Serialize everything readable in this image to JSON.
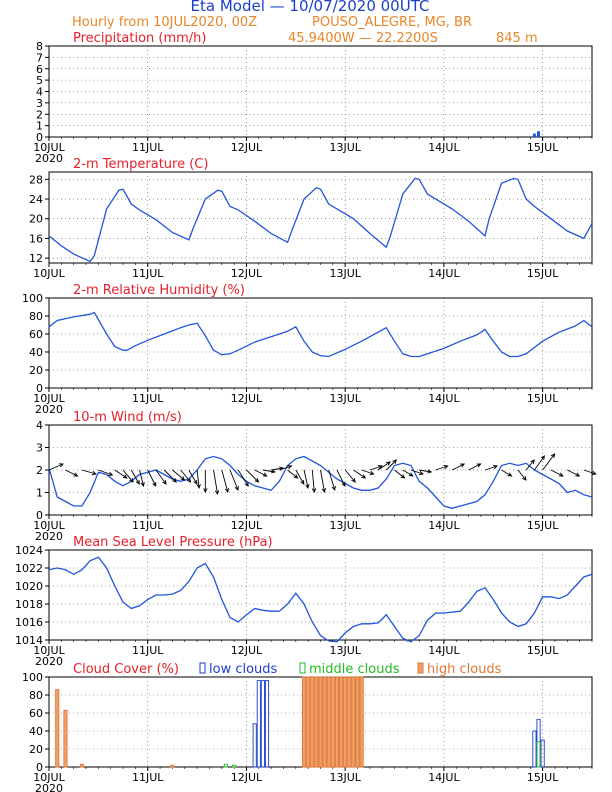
{
  "header": {
    "title": "Eta Model — 10/07/2020 00UTC",
    "subtitle_left": "Hourly from 10JUL2020, 00Z",
    "station": "POUSO_ALEGRE, MG, BR",
    "coords": "45.9400W — 22.2200S",
    "elevation": "845  m"
  },
  "colors": {
    "title": "#1a3fcc",
    "subtitle": "#e8862a",
    "panel_title": "#e8202a",
    "line": "#2255dd",
    "low": "#1a3fcc",
    "middle": "#22bb22",
    "high": "#f0a070",
    "high_edge": "#e07830"
  },
  "x_axis": {
    "ticks": [
      {
        "label": "10JUL",
        "sub": "2020",
        "hour": 0
      },
      {
        "label": "11JUL",
        "hour": 24
      },
      {
        "label": "12JUL",
        "hour": 48
      },
      {
        "label": "13JUL",
        "hour": 72
      },
      {
        "label": "14JUL",
        "hour": 96
      },
      {
        "label": "15JUL",
        "hour": 120
      }
    ],
    "max_hour": 132
  },
  "chart_data": [
    {
      "id": "precip",
      "type": "bar",
      "title": "Precipitation (mm/h)",
      "ylim": [
        0,
        8
      ],
      "yticks": [
        0,
        1,
        2,
        3,
        4,
        5,
        6,
        7,
        8
      ],
      "x": [
        118,
        119
      ],
      "values": [
        0.3,
        0.5
      ]
    },
    {
      "id": "temp",
      "type": "line",
      "title": "2-m Temperature (C)",
      "ylim": [
        11,
        29.5
      ],
      "yticks": [
        12,
        16,
        20,
        24,
        28
      ],
      "x": [
        0,
        3,
        6,
        10,
        11,
        14,
        17,
        18,
        20,
        22,
        26,
        30,
        34,
        35,
        38,
        41,
        42,
        44,
        46,
        50,
        54,
        58,
        59,
        62,
        65,
        66,
        68,
        70,
        74,
        78,
        82,
        83,
        86,
        89,
        90,
        92,
        94,
        98,
        102,
        106,
        107,
        110,
        113,
        114,
        116,
        118,
        122,
        126,
        130,
        132
      ],
      "values": [
        16.5,
        14.5,
        12.8,
        11.3,
        12.5,
        22,
        25.8,
        26,
        23,
        21.8,
        19.8,
        17.2,
        15.7,
        18,
        24,
        25.8,
        25.6,
        22.5,
        21.8,
        19.5,
        17,
        15.2,
        17.5,
        24,
        26.3,
        26,
        23,
        22,
        20,
        17,
        14.2,
        16.5,
        25,
        28.2,
        28,
        25,
        24,
        22,
        19.5,
        16.5,
        20,
        27.2,
        28.2,
        28,
        24,
        22.5,
        20,
        17.5,
        16,
        19
      ]
    },
    {
      "id": "rh",
      "type": "line",
      "title": "2-m Relative Humidity (%)",
      "ylim": [
        0,
        100
      ],
      "yticks": [
        0,
        20,
        40,
        60,
        80,
        100
      ],
      "x": [
        0,
        2,
        6,
        10,
        11,
        14,
        16,
        18,
        19,
        21,
        24,
        28,
        32,
        34,
        36,
        38,
        40,
        42,
        44,
        46,
        50,
        54,
        58,
        60,
        62,
        64,
        66,
        68,
        72,
        76,
        80,
        82,
        84,
        86,
        88,
        90,
        92,
        96,
        100,
        104,
        106,
        108,
        110,
        112,
        114,
        116,
        120,
        124,
        128,
        130,
        132
      ],
      "values": [
        68,
        75,
        79,
        82,
        84,
        60,
        46,
        42,
        42,
        47,
        53,
        60,
        67,
        70,
        72,
        58,
        42,
        37,
        38,
        42,
        51,
        57,
        63,
        68,
        52,
        40,
        36,
        35,
        43,
        52,
        62,
        67,
        52,
        38,
        35,
        35,
        38,
        44,
        52,
        59,
        65,
        52,
        40,
        35,
        35,
        38,
        52,
        62,
        69,
        75,
        68
      ]
    },
    {
      "id": "wind",
      "type": "line",
      "title": "10-m Wind (m/s)",
      "ylim": [
        0,
        4
      ],
      "yticks": [
        0,
        1,
        2,
        3,
        4
      ],
      "x": [
        0,
        2,
        4,
        6,
        8,
        10,
        12,
        14,
        16,
        18,
        20,
        22,
        24,
        26,
        28,
        30,
        32,
        34,
        36,
        38,
        40,
        42,
        44,
        46,
        48,
        50,
        52,
        54,
        56,
        58,
        60,
        62,
        64,
        66,
        68,
        70,
        72,
        74,
        76,
        78,
        80,
        82,
        84,
        86,
        88,
        90,
        92,
        94,
        96,
        98,
        100,
        102,
        104,
        106,
        108,
        110,
        112,
        114,
        116,
        118,
        120,
        122,
        124,
        126,
        128,
        130,
        132
      ],
      "values": [
        2.1,
        0.8,
        0.6,
        0.4,
        0.4,
        1.0,
        1.9,
        1.8,
        1.5,
        1.3,
        1.5,
        1.8,
        1.9,
        2.0,
        1.8,
        1.6,
        1.5,
        1.6,
        2.0,
        2.5,
        2.6,
        2.5,
        2.2,
        1.8,
        1.5,
        1.3,
        1.2,
        1.1,
        1.5,
        2.2,
        2.5,
        2.6,
        2.4,
        2.2,
        1.9,
        1.6,
        1.4,
        1.2,
        1.1,
        1.1,
        1.2,
        1.6,
        2.2,
        2.3,
        2.2,
        1.5,
        1.2,
        0.8,
        0.4,
        0.3,
        0.4,
        0.5,
        0.6,
        0.9,
        1.5,
        2.2,
        2.3,
        2.2,
        2.3,
        2.0,
        1.8,
        1.6,
        1.4,
        1.0,
        1.1,
        0.9,
        0.8
      ]
    },
    {
      "id": "mslp",
      "type": "line",
      "title": "Mean Sea Level Pressure (hPa)",
      "ylim": [
        1014,
        1024
      ],
      "yticks": [
        1014,
        1016,
        1018,
        1020,
        1022,
        1024
      ],
      "x": [
        0,
        2,
        4,
        6,
        8,
        10,
        12,
        14,
        16,
        18,
        20,
        22,
        24,
        26,
        28,
        30,
        32,
        34,
        36,
        38,
        40,
        42,
        44,
        46,
        48,
        50,
        52,
        54,
        56,
        58,
        60,
        62,
        64,
        66,
        68,
        70,
        72,
        74,
        76,
        78,
        80,
        82,
        84,
        86,
        88,
        90,
        92,
        94,
        96,
        98,
        100,
        102,
        104,
        106,
        108,
        110,
        112,
        114,
        116,
        118,
        120,
        122,
        124,
        126,
        128,
        130,
        132
      ],
      "values": [
        1021.8,
        1022.0,
        1021.8,
        1021.3,
        1021.8,
        1022.8,
        1023.2,
        1022.0,
        1020.0,
        1018.2,
        1017.5,
        1017.8,
        1018.5,
        1019.0,
        1019.0,
        1019.1,
        1019.5,
        1020.5,
        1022.0,
        1022.5,
        1021.0,
        1018.5,
        1016.5,
        1016.0,
        1016.8,
        1017.5,
        1017.3,
        1017.2,
        1017.2,
        1018.0,
        1019.2,
        1018.0,
        1016.0,
        1014.5,
        1013.9,
        1013.8,
        1014.8,
        1015.5,
        1015.8,
        1015.8,
        1015.9,
        1016.8,
        1015.5,
        1014.2,
        1013.8,
        1014.5,
        1016.2,
        1017.0,
        1017.0,
        1017.1,
        1017.2,
        1018.2,
        1019.4,
        1019.8,
        1018.5,
        1017.0,
        1016.0,
        1015.5,
        1015.8,
        1017.0,
        1018.8,
        1018.8,
        1018.6,
        1019.0,
        1020.0,
        1021.0,
        1021.3
      ]
    },
    {
      "id": "cloud",
      "type": "bar",
      "title": "Cloud Cover (%)",
      "ylim": [
        0,
        100
      ],
      "yticks": [
        0,
        20,
        40,
        60,
        80,
        100
      ],
      "series": [
        {
          "name": "low clouds",
          "x": [
            50,
            51,
            52,
            53,
            118,
            119,
            120
          ],
          "values": [
            48,
            96,
            96,
            96,
            40,
            53,
            30
          ]
        },
        {
          "name": "middle clouds",
          "x": [
            43,
            45,
            119
          ],
          "values": [
            3,
            2,
            28
          ]
        },
        {
          "name": "high clouds",
          "x": [
            2,
            4,
            8,
            30,
            62,
            63,
            64,
            65,
            66,
            67,
            68,
            69,
            70,
            71,
            72,
            73,
            74,
            75,
            76
          ],
          "values": [
            86,
            63,
            3,
            2,
            100,
            100,
            100,
            100,
            100,
            100,
            100,
            100,
            100,
            100,
            100,
            100,
            100,
            100,
            100
          ]
        }
      ]
    }
  ],
  "wind_barbs": [
    {
      "hour": 0,
      "y": 2.0,
      "dx": 14,
      "dy": -6
    },
    {
      "hour": 4,
      "y": 2.0,
      "dx": 12,
      "dy": 6
    },
    {
      "hour": 8,
      "y": 2.0,
      "dx": 14,
      "dy": 4
    },
    {
      "hour": 12,
      "y": 2.0,
      "dx": 14,
      "dy": 5
    },
    {
      "hour": 16,
      "y": 2.0,
      "dx": 12,
      "dy": 8
    },
    {
      "hour": 18,
      "y": 2.0,
      "dx": 10,
      "dy": 12
    },
    {
      "hour": 20,
      "y": 2.0,
      "dx": 8,
      "dy": 14
    },
    {
      "hour": 22,
      "y": 2.0,
      "dx": 4,
      "dy": 16
    },
    {
      "hour": 24,
      "y": 2.0,
      "dx": 8,
      "dy": 16
    },
    {
      "hour": 26,
      "y": 2.0,
      "dx": 10,
      "dy": 14
    },
    {
      "hour": 28,
      "y": 2.0,
      "dx": 12,
      "dy": 12
    },
    {
      "hour": 30,
      "y": 2.0,
      "dx": 12,
      "dy": 10
    },
    {
      "hour": 32,
      "y": 2.0,
      "dx": 10,
      "dy": 12
    },
    {
      "hour": 34,
      "y": 2.0,
      "dx": 8,
      "dy": 14
    },
    {
      "hour": 36,
      "y": 2.0,
      "dx": 2,
      "dy": 18
    },
    {
      "hour": 38,
      "y": 2.0,
      "dx": 0,
      "dy": 22
    },
    {
      "hour": 40,
      "y": 2.0,
      "dx": 4,
      "dy": 24
    },
    {
      "hour": 42,
      "y": 2.0,
      "dx": 6,
      "dy": 22
    },
    {
      "hour": 44,
      "y": 2.0,
      "dx": 8,
      "dy": 20
    },
    {
      "hour": 46,
      "y": 2.0,
      "dx": 10,
      "dy": 16
    },
    {
      "hour": 48,
      "y": 2.0,
      "dx": 12,
      "dy": 12
    },
    {
      "hour": 50,
      "y": 2.0,
      "dx": 12,
      "dy": 6
    },
    {
      "hour": 52,
      "y": 2.0,
      "dx": 12,
      "dy": 2
    },
    {
      "hour": 54,
      "y": 2.0,
      "dx": 12,
      "dy": -2
    },
    {
      "hour": 56,
      "y": 2.0,
      "dx": 12,
      "dy": -4
    },
    {
      "hour": 58,
      "y": 2.0,
      "dx": 10,
      "dy": 8
    },
    {
      "hour": 60,
      "y": 2.0,
      "dx": 8,
      "dy": 14
    },
    {
      "hour": 62,
      "y": 2.0,
      "dx": 4,
      "dy": 18
    },
    {
      "hour": 64,
      "y": 2.0,
      "dx": 2,
      "dy": 22
    },
    {
      "hour": 66,
      "y": 2.0,
      "dx": 4,
      "dy": 22
    },
    {
      "hour": 68,
      "y": 2.0,
      "dx": 6,
      "dy": 20
    },
    {
      "hour": 70,
      "y": 2.0,
      "dx": 8,
      "dy": 16
    },
    {
      "hour": 72,
      "y": 2.0,
      "dx": 10,
      "dy": 12
    },
    {
      "hour": 74,
      "y": 2.0,
      "dx": 12,
      "dy": 8
    },
    {
      "hour": 76,
      "y": 2.0,
      "dx": 12,
      "dy": 4
    },
    {
      "hour": 78,
      "y": 2.0,
      "dx": 12,
      "dy": -4
    },
    {
      "hour": 80,
      "y": 2.0,
      "dx": 12,
      "dy": -8
    },
    {
      "hour": 82,
      "y": 2.0,
      "dx": 10,
      "dy": -10
    },
    {
      "hour": 84,
      "y": 2.0,
      "dx": 10,
      "dy": 8
    },
    {
      "hour": 86,
      "y": 2.0,
      "dx": 10,
      "dy": 6
    },
    {
      "hour": 88,
      "y": 2.0,
      "dx": 12,
      "dy": 4
    },
    {
      "hour": 90,
      "y": 2.0,
      "dx": 12,
      "dy": 2
    },
    {
      "hour": 94,
      "y": 2.0,
      "dx": 12,
      "dy": -4
    },
    {
      "hour": 98,
      "y": 2.0,
      "dx": 12,
      "dy": -6
    },
    {
      "hour": 102,
      "y": 2.0,
      "dx": 12,
      "dy": -6
    },
    {
      "hour": 106,
      "y": 2.0,
      "dx": 12,
      "dy": -4
    },
    {
      "hour": 110,
      "y": 2.0,
      "dx": 10,
      "dy": 6
    },
    {
      "hour": 114,
      "y": 2.0,
      "dx": 8,
      "dy": 10
    },
    {
      "hour": 116,
      "y": 2.0,
      "dx": 8,
      "dy": -10
    },
    {
      "hour": 118,
      "y": 2.0,
      "dx": 10,
      "dy": -14
    },
    {
      "hour": 120,
      "y": 2.0,
      "dx": 12,
      "dy": -16
    },
    {
      "hour": 122,
      "y": 2.0,
      "dx": 12,
      "dy": 6
    },
    {
      "hour": 126,
      "y": 2.0,
      "dx": 12,
      "dy": 6
    },
    {
      "hour": 130,
      "y": 2.0,
      "dx": 12,
      "dy": 4
    }
  ]
}
